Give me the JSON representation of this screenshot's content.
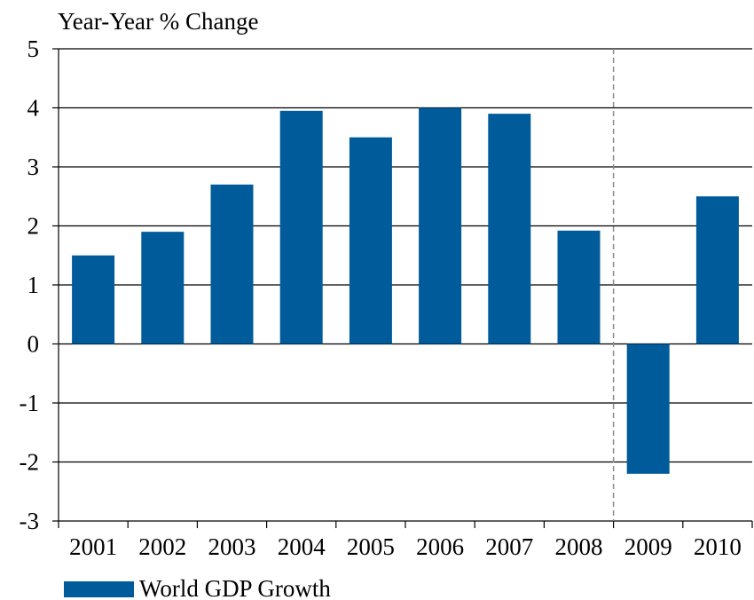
{
  "chart_data": {
    "type": "bar",
    "ylabel": "Year-Year % Change",
    "categories": [
      "2001",
      "2002",
      "2003",
      "2004",
      "2005",
      "2006",
      "2007",
      "2008",
      "2009",
      "2010"
    ],
    "series": [
      {
        "name": "World GDP Growth",
        "values": [
          1.5,
          1.9,
          2.7,
          3.95,
          3.5,
          4.0,
          3.9,
          1.92,
          -2.2,
          2.5
        ],
        "color": "#005b9a"
      }
    ],
    "ylim": [
      -3,
      5
    ],
    "yticks": [
      "5",
      "4",
      "3",
      "2",
      "1",
      "0",
      "-1",
      "-2",
      "-3"
    ],
    "grid": true,
    "legend_position": "bottom-left",
    "forecast_divider_between": [
      "2008",
      "2009"
    ]
  }
}
